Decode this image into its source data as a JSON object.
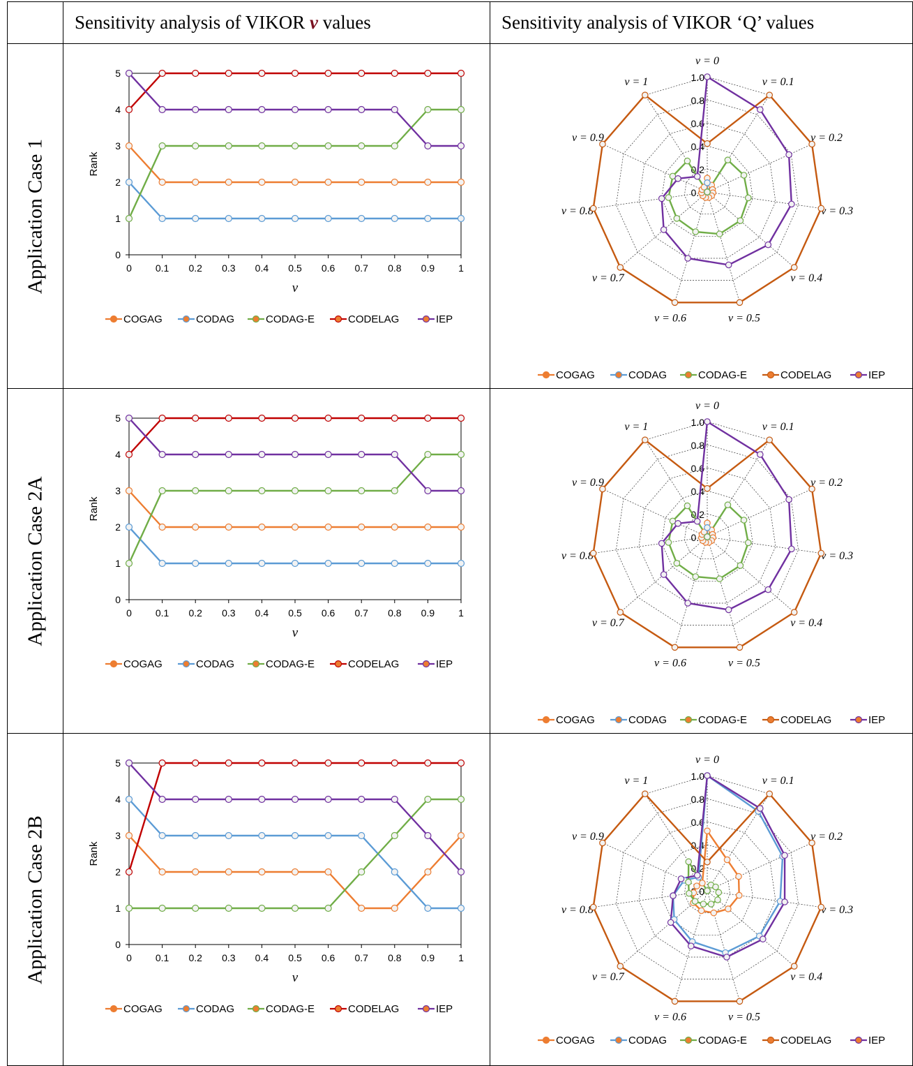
{
  "headers": {
    "col1": "",
    "col2": "Sensitivity analysis of VIKOR ",
    "col2_var": "v",
    "col2_tail": " values",
    "col3": "Sensitivity analysis of VIKOR ‘Q’ values"
  },
  "rows": [
    {
      "label": "Application Case 1"
    },
    {
      "label": "Application Case 2A"
    },
    {
      "label": "Application Case 2B"
    }
  ],
  "colors": {
    "COGAG": "#ED7D31",
    "CODAG": "#5B9BD5",
    "CODAG-E": "#70AD47",
    "CODELAG": "#C00000",
    "CODELAG_radar": "#C55A11",
    "IEP": "#7030A0"
  },
  "chart_data": [
    {
      "type": "line",
      "row": "Application Case 1",
      "x": [
        0,
        0.1,
        0.2,
        0.3,
        0.4,
        0.5,
        0.6,
        0.7,
        0.8,
        0.9,
        1
      ],
      "xticks": [
        "0",
        "0.1",
        "0.2",
        "0.3",
        "0.4",
        "0.5",
        "0.6",
        "0.7",
        "0.8",
        "0.9",
        "1"
      ],
      "xlabel": "v",
      "ylabel": "Rank",
      "ylim": [
        0,
        5
      ],
      "yticks": [
        "0",
        "1",
        "2",
        "3",
        "4",
        "5"
      ],
      "series": [
        {
          "name": "COGAG",
          "values": [
            3,
            2,
            2,
            2,
            2,
            2,
            2,
            2,
            2,
            2,
            2
          ]
        },
        {
          "name": "CODAG",
          "values": [
            2,
            1,
            1,
            1,
            1,
            1,
            1,
            1,
            1,
            1,
            1
          ]
        },
        {
          "name": "CODAG-E",
          "values": [
            1,
            3,
            3,
            3,
            3,
            3,
            3,
            3,
            3,
            4,
            4
          ]
        },
        {
          "name": "CODELAG",
          "values": [
            4,
            5,
            5,
            5,
            5,
            5,
            5,
            5,
            5,
            5,
            5
          ]
        },
        {
          "name": "IEP",
          "values": [
            5,
            4,
            4,
            4,
            4,
            4,
            4,
            4,
            4,
            3,
            3
          ]
        }
      ]
    },
    {
      "type": "radar",
      "row": "Application Case 1",
      "axes": [
        "v = 0",
        "v = 0.1",
        "v = 0.2",
        "v = 0.3",
        "v = 0.4",
        "v = 0.5",
        "v = 0.6",
        "v = 0.7",
        "v = 0.8",
        "v = 0.9",
        "v = 1"
      ],
      "rticks": [
        "0.0",
        "0.2",
        "0.4",
        "0.6",
        "0.8",
        "1.0"
      ],
      "rlim": [
        0,
        1
      ],
      "series": [
        {
          "name": "COGAG",
          "values": [
            0.12,
            0.07,
            0.05,
            0.05,
            0.05,
            0.05,
            0.05,
            0.05,
            0.05,
            0.05,
            0.05
          ]
        },
        {
          "name": "CODAG",
          "values": [
            0.08,
            0.0,
            0.0,
            0.0,
            0.0,
            0.0,
            0.0,
            0.0,
            0.0,
            0.0,
            0.0
          ]
        },
        {
          "name": "CODAG-E",
          "values": [
            0.0,
            0.33,
            0.35,
            0.36,
            0.38,
            0.38,
            0.36,
            0.35,
            0.34,
            0.33,
            0.32
          ]
        },
        {
          "name": "CODELAG",
          "values": [
            0.42,
            1.0,
            1.0,
            1.0,
            1.0,
            1.0,
            1.0,
            1.0,
            1.0,
            1.0,
            1.0
          ]
        },
        {
          "name": "IEP",
          "values": [
            1.0,
            0.85,
            0.78,
            0.74,
            0.7,
            0.66,
            0.6,
            0.5,
            0.4,
            0.28,
            0.16
          ]
        }
      ]
    },
    {
      "type": "line",
      "row": "Application Case 2A",
      "x": [
        0,
        0.1,
        0.2,
        0.3,
        0.4,
        0.5,
        0.6,
        0.7,
        0.8,
        0.9,
        1
      ],
      "xticks": [
        "0",
        "0.1",
        "0.2",
        "0.3",
        "0.4",
        "0.5",
        "0.6",
        "0.7",
        "0.8",
        "0.9",
        "1"
      ],
      "xlabel": "v",
      "ylabel": "Rank",
      "ylim": [
        0,
        5
      ],
      "yticks": [
        "0",
        "1",
        "2",
        "3",
        "4",
        "5"
      ],
      "series": [
        {
          "name": "COGAG",
          "values": [
            3,
            2,
            2,
            2,
            2,
            2,
            2,
            2,
            2,
            2,
            2
          ]
        },
        {
          "name": "CODAG",
          "values": [
            2,
            1,
            1,
            1,
            1,
            1,
            1,
            1,
            1,
            1,
            1
          ]
        },
        {
          "name": "CODAG-E",
          "values": [
            1,
            3,
            3,
            3,
            3,
            3,
            3,
            3,
            3,
            4,
            4
          ]
        },
        {
          "name": "CODELAG",
          "values": [
            4,
            5,
            5,
            5,
            5,
            5,
            5,
            5,
            5,
            5,
            5
          ]
        },
        {
          "name": "IEP",
          "values": [
            5,
            4,
            4,
            4,
            4,
            4,
            4,
            4,
            4,
            3,
            3
          ]
        }
      ]
    },
    {
      "type": "radar",
      "row": "Application Case 2A",
      "axes": [
        "v = 0",
        "v = 0.1",
        "v = 0.2",
        "v = 0.3",
        "v = 0.4",
        "v = 0.5",
        "v = 0.6",
        "v = 0.7",
        "v = 0.8",
        "v = 0.9",
        "v = 1"
      ],
      "rticks": [
        "0.0",
        "0.2",
        "0.4",
        "0.6",
        "0.8",
        "1.0"
      ],
      "rlim": [
        0,
        1
      ],
      "series": [
        {
          "name": "COGAG",
          "values": [
            0.12,
            0.07,
            0.05,
            0.05,
            0.05,
            0.05,
            0.05,
            0.05,
            0.05,
            0.05,
            0.05
          ]
        },
        {
          "name": "CODAG",
          "values": [
            0.08,
            0.0,
            0.0,
            0.0,
            0.0,
            0.0,
            0.0,
            0.0,
            0.0,
            0.0,
            0.0
          ]
        },
        {
          "name": "CODAG-E",
          "values": [
            0.0,
            0.33,
            0.35,
            0.36,
            0.38,
            0.38,
            0.36,
            0.35,
            0.34,
            0.33,
            0.32
          ]
        },
        {
          "name": "CODELAG",
          "values": [
            0.42,
            1.0,
            1.0,
            1.0,
            1.0,
            1.0,
            1.0,
            1.0,
            1.0,
            1.0,
            1.0
          ]
        },
        {
          "name": "IEP",
          "values": [
            1.0,
            0.85,
            0.78,
            0.74,
            0.7,
            0.66,
            0.6,
            0.5,
            0.4,
            0.28,
            0.16
          ]
        }
      ]
    },
    {
      "type": "line",
      "row": "Application Case 2B",
      "x": [
        0,
        0.1,
        0.2,
        0.3,
        0.4,
        0.5,
        0.6,
        0.7,
        0.8,
        0.9,
        1
      ],
      "xticks": [
        "0",
        "0.1",
        "0.2",
        "0.3",
        "0.4",
        "0.5",
        "0.6",
        "0.7",
        "0.8",
        "0.9",
        "1"
      ],
      "xlabel": "v",
      "ylabel": "Rank",
      "ylim": [
        0,
        5
      ],
      "yticks": [
        "0",
        "1",
        "2",
        "3",
        "4",
        "5"
      ],
      "series": [
        {
          "name": "COGAG",
          "values": [
            3,
            2,
            2,
            2,
            2,
            2,
            2,
            1,
            1,
            2,
            3
          ]
        },
        {
          "name": "CODAG",
          "values": [
            4,
            3,
            3,
            3,
            3,
            3,
            3,
            3,
            2,
            1,
            1
          ]
        },
        {
          "name": "CODAG-E",
          "values": [
            1,
            1,
            1,
            1,
            1,
            1,
            1,
            2,
            3,
            4,
            4
          ]
        },
        {
          "name": "CODELAG",
          "values": [
            2,
            5,
            5,
            5,
            5,
            5,
            5,
            5,
            5,
            5,
            5
          ]
        },
        {
          "name": "IEP",
          "values": [
            5,
            4,
            4,
            4,
            4,
            4,
            4,
            4,
            4,
            3,
            2
          ]
        }
      ]
    },
    {
      "type": "radar",
      "row": "Application Case 2B",
      "axes": [
        "v = 0",
        "v = 0.1",
        "v = 0.2",
        "v = 0.3",
        "v = 0.4",
        "v = 0.5",
        "v = 0.6",
        "v = 0.7",
        "v = 0.8",
        "v = 0.9",
        "v = 1"
      ],
      "rticks": [
        "0.0",
        "0.2",
        "0.4",
        "0.6",
        "0.8",
        "1.0"
      ],
      "rlim": [
        0,
        1
      ],
      "series": [
        {
          "name": "COGAG",
          "values": [
            0.52,
            0.32,
            0.3,
            0.28,
            0.24,
            0.2,
            0.18,
            0.16,
            0.12,
            0.1,
            0.08
          ]
        },
        {
          "name": "CODAG",
          "values": [
            1.0,
            0.82,
            0.72,
            0.64,
            0.6,
            0.56,
            0.46,
            0.38,
            0.3,
            0.22,
            0.14
          ]
        },
        {
          "name": "CODAG-E",
          "values": [
            0.0,
            0.06,
            0.08,
            0.1,
            0.12,
            0.12,
            0.12,
            0.14,
            0.16,
            0.18,
            0.3
          ]
        },
        {
          "name": "CODELAG",
          "values": [
            0.25,
            1.0,
            1.0,
            1.0,
            1.0,
            1.0,
            1.0,
            1.0,
            1.0,
            1.0,
            1.0
          ]
        },
        {
          "name": "IEP",
          "values": [
            1.0,
            0.85,
            0.74,
            0.68,
            0.64,
            0.6,
            0.5,
            0.42,
            0.3,
            0.25,
            0.16
          ]
        }
      ]
    }
  ]
}
